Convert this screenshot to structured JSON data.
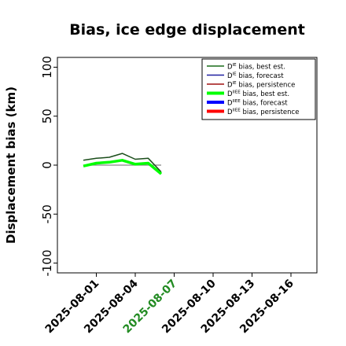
{
  "chart_data": {
    "type": "line",
    "title": "Bias, ice edge displacement",
    "ylabel": "Displacement bias (km)",
    "xlabel": "",
    "ylim": [
      -110,
      110
    ],
    "xlim": [
      "2025-07-29",
      "2025-08-18"
    ],
    "yticks": [
      -100,
      -50,
      0,
      50,
      100
    ],
    "xticks": [
      "2025-08-01",
      "2025-08-04",
      "2025-08-07",
      "2025-08-10",
      "2025-08-13",
      "2025-08-16"
    ],
    "highlight_tick": "2025-08-07",
    "highlight_color": "#228B22",
    "grid": false,
    "legend_position": "top-right",
    "legend": [
      {
        "sup": "IE",
        "text": " bias, best est.",
        "color": "#1a6b1a",
        "width": 1.5
      },
      {
        "sup": "IE",
        "text": " bias, forecast",
        "color": "#2020a0",
        "width": 1.5
      },
      {
        "sup": "IE",
        "text": " bias, persistence",
        "color": "#a01010",
        "width": 1.5
      },
      {
        "sup": "IIEE",
        "text": " bias, best est.",
        "color": "#00ff00",
        "width": 4
      },
      {
        "sup": "IIEE",
        "text": " bias, forecast",
        "color": "#0000ff",
        "width": 4
      },
      {
        "sup": "IIEE",
        "text": " bias, persistence",
        "color": "#ff0000",
        "width": 4
      }
    ],
    "series": [
      {
        "color": "#888888",
        "width": 1.2,
        "x": [
          "2025-07-31",
          "2025-08-06"
        ],
        "y": [
          0,
          0
        ]
      },
      {
        "color": "#1a4d1a",
        "width": 1.5,
        "x": [
          "2025-07-31",
          "2025-08-01",
          "2025-08-02",
          "2025-08-03",
          "2025-08-04",
          "2025-08-05",
          "2025-08-06"
        ],
        "y": [
          5,
          7,
          8,
          12,
          6,
          7,
          -7
        ]
      },
      {
        "color": "#00ff00",
        "width": 3.5,
        "x": [
          "2025-07-31",
          "2025-08-01",
          "2025-08-02",
          "2025-08-03",
          "2025-08-04",
          "2025-08-05",
          "2025-08-06"
        ],
        "y": [
          -1,
          2,
          3,
          5,
          1,
          2,
          -9
        ]
      }
    ]
  }
}
